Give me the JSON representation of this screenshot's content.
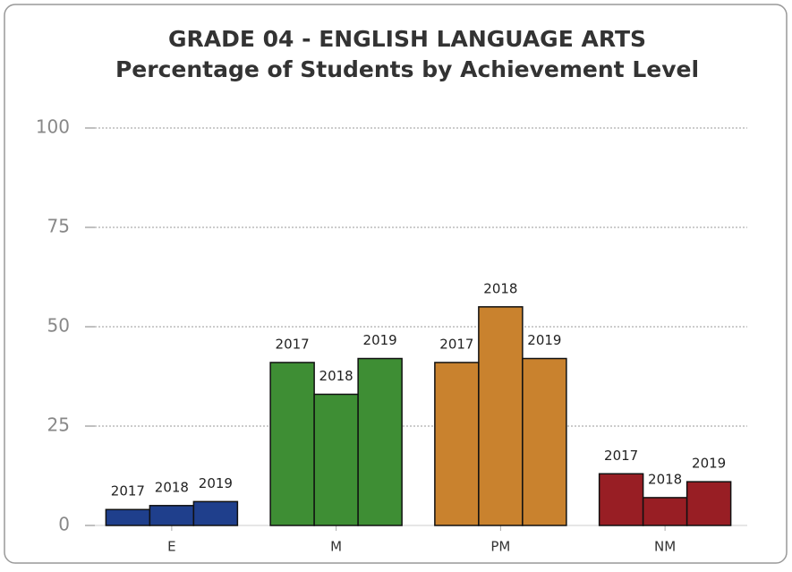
{
  "chart_data": {
    "type": "bar",
    "title": "GRADE 04 - ENGLISH LANGUAGE ARTS",
    "subtitle": "Percentage of Students by Achievement Level",
    "categories": [
      "E",
      "M",
      "PM",
      "NM"
    ],
    "colors": [
      "#1f3f8c",
      "#3e8e34",
      "#c9822e",
      "#981e24"
    ],
    "series": [
      {
        "name": "2017",
        "values": [
          4,
          41,
          41,
          13
        ]
      },
      {
        "name": "2018",
        "values": [
          5,
          33,
          55,
          7
        ]
      },
      {
        "name": "2019",
        "values": [
          6,
          42,
          42,
          11
        ]
      }
    ],
    "ylim": [
      0,
      100
    ],
    "yticks": [
      0,
      25,
      50,
      75,
      100
    ],
    "grid": true
  }
}
